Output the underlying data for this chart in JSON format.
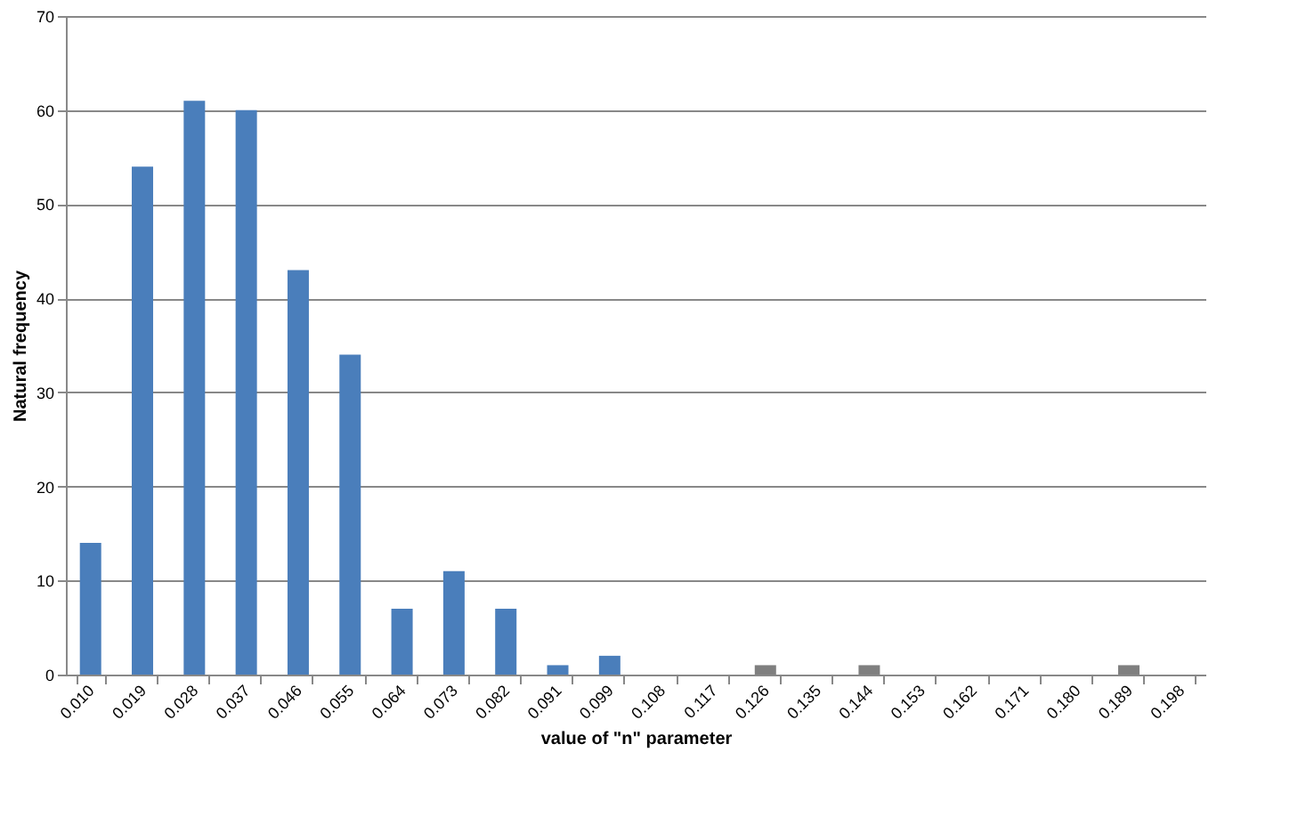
{
  "chart_data": {
    "type": "bar",
    "xlabel": "value of \"n\" parameter",
    "ylabel": "Natural frequency",
    "categories": [
      "0.010",
      "0.019",
      "0.028",
      "0.037",
      "0.046",
      "0.055",
      "0.064",
      "0.073",
      "0.082",
      "0.091",
      "0.099",
      "0.108",
      "0.117",
      "0.126",
      "0.135",
      "0.144",
      "0.153",
      "0.162",
      "0.171",
      "0.180",
      "0.189",
      "0.198"
    ],
    "values": [
      14,
      54,
      61,
      60,
      43,
      34,
      7,
      11,
      7,
      1,
      2,
      0,
      0,
      1,
      0,
      1,
      0,
      0,
      0,
      0,
      1,
      0
    ],
    "colors": [
      "#4a7ebb",
      "#4a7ebb",
      "#4a7ebb",
      "#4a7ebb",
      "#4a7ebb",
      "#4a7ebb",
      "#4a7ebb",
      "#4a7ebb",
      "#4a7ebb",
      "#4a7ebb",
      "#4a7ebb",
      "#4a7ebb",
      "#4a7ebb",
      "#7f7f7f",
      "#4a7ebb",
      "#7f7f7f",
      "#4a7ebb",
      "#4a7ebb",
      "#4a7ebb",
      "#4a7ebb",
      "#7f7f7f",
      "#4a7ebb"
    ],
    "ylim": [
      0,
      70
    ],
    "yticks": [
      0,
      10,
      20,
      30,
      40,
      50,
      60,
      70
    ],
    "grid": "y"
  }
}
